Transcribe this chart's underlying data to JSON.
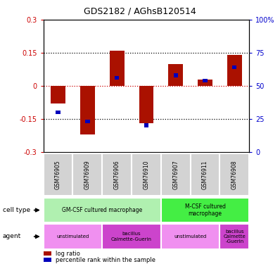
{
  "title": "GDS2182 / AGhsB120514",
  "samples": [
    "GSM76905",
    "GSM76909",
    "GSM76906",
    "GSM76910",
    "GSM76907",
    "GSM76911",
    "GSM76908"
  ],
  "log_ratio": [
    -0.08,
    -0.22,
    0.16,
    -0.17,
    0.1,
    0.03,
    0.14
  ],
  "percentile_rank": [
    30,
    23,
    56,
    20,
    58,
    54,
    64
  ],
  "ylim_left": [
    -0.3,
    0.3
  ],
  "ylim_right": [
    0,
    100
  ],
  "bar_color_red": "#aa1100",
  "bar_color_blue": "#0000bb",
  "zero_line_color": "#cc0000",
  "tick_label_color_left": "#cc0000",
  "tick_label_color_right": "#0000cc",
  "cell_type_label": "cell type",
  "agent_label": "agent",
  "legend_red_label": "log ratio",
  "legend_blue_label": "percentile rank within the sample",
  "sample_box_color": "#d3d3d3",
  "ct_spans": [
    [
      0,
      3,
      "GM-CSF cultured macrophage",
      "#b0f0b0"
    ],
    [
      4,
      6,
      "M-CSF cultured\nmacrophage",
      "#44ee44"
    ]
  ],
  "ag_spans": [
    [
      0,
      1,
      "unstimulated",
      "#f090f0"
    ],
    [
      2,
      3,
      "bacillus\nCalmette-Guerin",
      "#cc44cc"
    ],
    [
      4,
      5,
      "unstimulated",
      "#f090f0"
    ],
    [
      6,
      6,
      "bacillus\nCalmette\n-Guerin",
      "#cc44cc"
    ]
  ]
}
